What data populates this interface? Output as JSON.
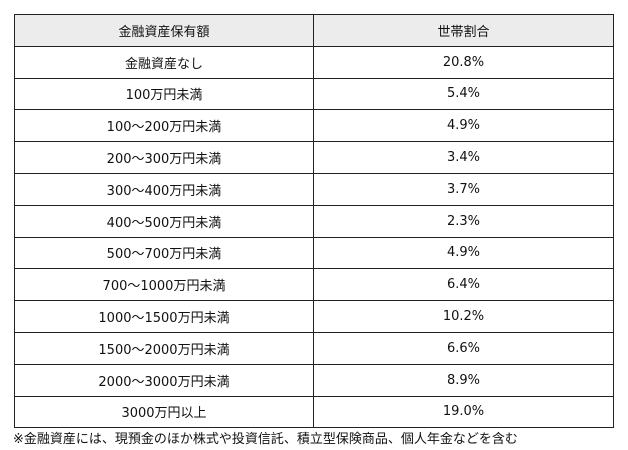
{
  "table": {
    "headers": [
      "金融資産保有額",
      "世帯割合"
    ],
    "rows": [
      [
        "金融資産なし",
        "20.8%"
      ],
      [
        "100万円未満",
        "5.4%"
      ],
      [
        "100～200万円未満",
        "4.9%"
      ],
      [
        "200～300万円未満",
        "3.4%"
      ],
      [
        "300～400万円未満",
        "3.7%"
      ],
      [
        "400～500万円未満",
        "2.3%"
      ],
      [
        "500～700万円未満",
        "4.9%"
      ],
      [
        "700～1000万円未満",
        "6.4%"
      ],
      [
        "1000～1500万円未満",
        "10.2%"
      ],
      [
        "1500～2000万円未満",
        "6.6%"
      ],
      [
        "2000～3000万円未満",
        "8.9%"
      ],
      [
        "3000万円以上",
        "19.0%"
      ]
    ]
  },
  "footnote": "※金融資産には、現預金のほか株式や投資信託、積立型保険商品、個人年金などを含む",
  "colors": {
    "header_bg": "#ececec",
    "border": "#222222"
  }
}
